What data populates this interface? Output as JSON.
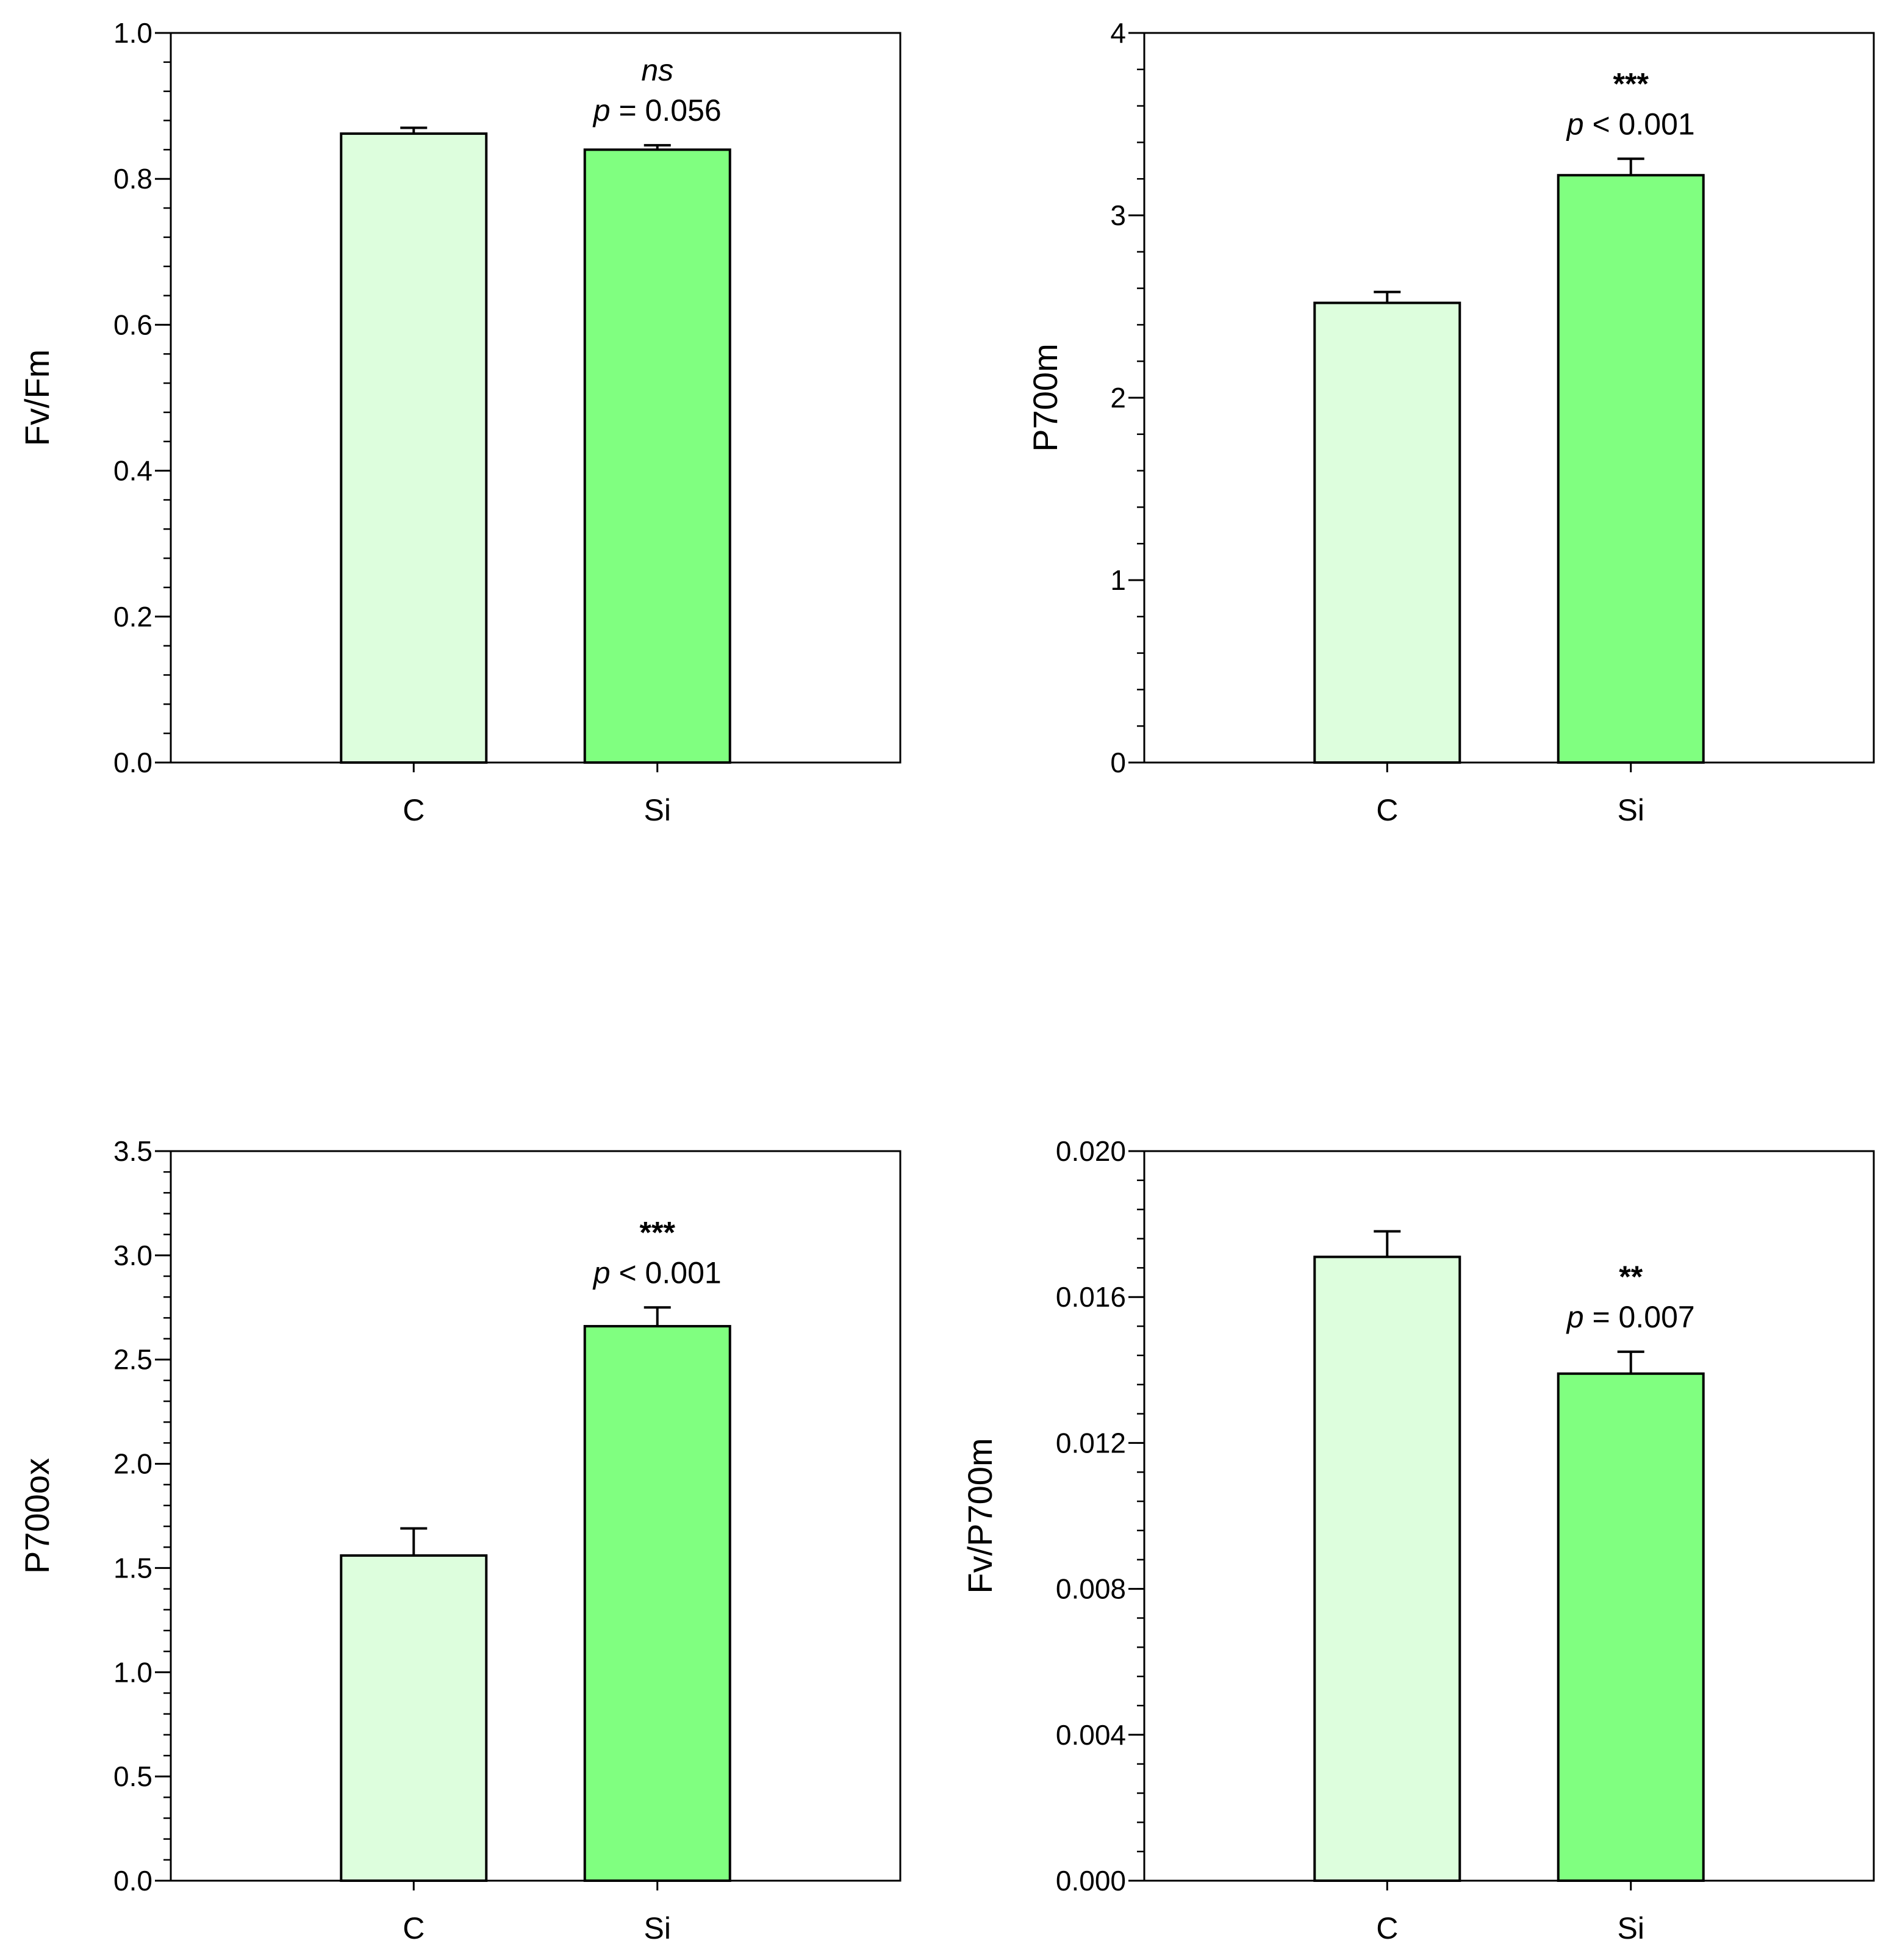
{
  "chart_data": [
    {
      "type": "bar",
      "categories": [
        "C",
        "Si"
      ],
      "values": [
        0.862,
        0.84
      ],
      "errors": [
        0.008,
        0.006
      ],
      "ylabel": "Fv/Fm",
      "xlabel": "",
      "ylim": [
        0,
        1.0
      ],
      "major_ticks": [
        0.0,
        0.2,
        0.4,
        0.6,
        0.8,
        1.0
      ],
      "tick_labels": [
        "0.0",
        "0.2",
        "0.4",
        "0.6",
        "0.8",
        "1.0"
      ],
      "minor_step": 0.04,
      "colors": [
        "#ddfedd",
        "#80ff80"
      ],
      "annotation": {
        "significance": "ns",
        "significance_italic": true,
        "p_symbol": "p",
        "p_text": " = 0.056"
      }
    },
    {
      "type": "bar",
      "categories": [
        "C",
        "Si"
      ],
      "values": [
        2.52,
        3.22
      ],
      "errors": [
        0.06,
        0.09
      ],
      "ylabel": "P700m",
      "xlabel": "",
      "ylim": [
        0,
        4
      ],
      "major_ticks": [
        0,
        1,
        2,
        3,
        4
      ],
      "tick_labels": [
        "0",
        "1",
        "2",
        "3",
        "4"
      ],
      "minor_step": 0.2,
      "colors": [
        "#ddfedd",
        "#80ff80"
      ],
      "annotation": {
        "significance": "***",
        "significance_italic": false,
        "p_symbol": "p",
        "p_text": " < 0.001"
      }
    },
    {
      "type": "bar",
      "categories": [
        "C",
        "Si"
      ],
      "values": [
        1.56,
        2.66
      ],
      "errors": [
        0.13,
        0.09
      ],
      "ylabel": "P700ox",
      "xlabel": "",
      "ylim": [
        0,
        3.5
      ],
      "major_ticks": [
        0.0,
        0.5,
        1.0,
        1.5,
        2.0,
        2.5,
        3.0,
        3.5
      ],
      "tick_labels": [
        "0.0",
        "0.5",
        "1.0",
        "1.5",
        "2.0",
        "2.5",
        "3.0",
        "3.5"
      ],
      "minor_step": 0.1,
      "colors": [
        "#ddfedd",
        "#80ff80"
      ],
      "annotation": {
        "significance": "***",
        "significance_italic": false,
        "p_symbol": "p",
        "p_text": " < 0.001"
      }
    },
    {
      "type": "bar",
      "categories": [
        "C",
        "Si"
      ],
      "values": [
        0.0171,
        0.0139
      ],
      "errors": [
        0.0007,
        0.0006
      ],
      "ylabel": "Fv/P700m",
      "xlabel": "",
      "ylim": [
        0,
        0.02
      ],
      "major_ticks": [
        0.0,
        0.004,
        0.008,
        0.012,
        0.016,
        0.02
      ],
      "tick_labels": [
        "0.000",
        "0.004",
        "0.008",
        "0.012",
        "0.016",
        "0.020"
      ],
      "minor_step": 0.0008,
      "colors": [
        "#ddfedd",
        "#80ff80"
      ],
      "annotation": {
        "significance": "**",
        "significance_italic": false,
        "p_symbol": "p",
        "p_text": " = 0.007"
      }
    }
  ]
}
